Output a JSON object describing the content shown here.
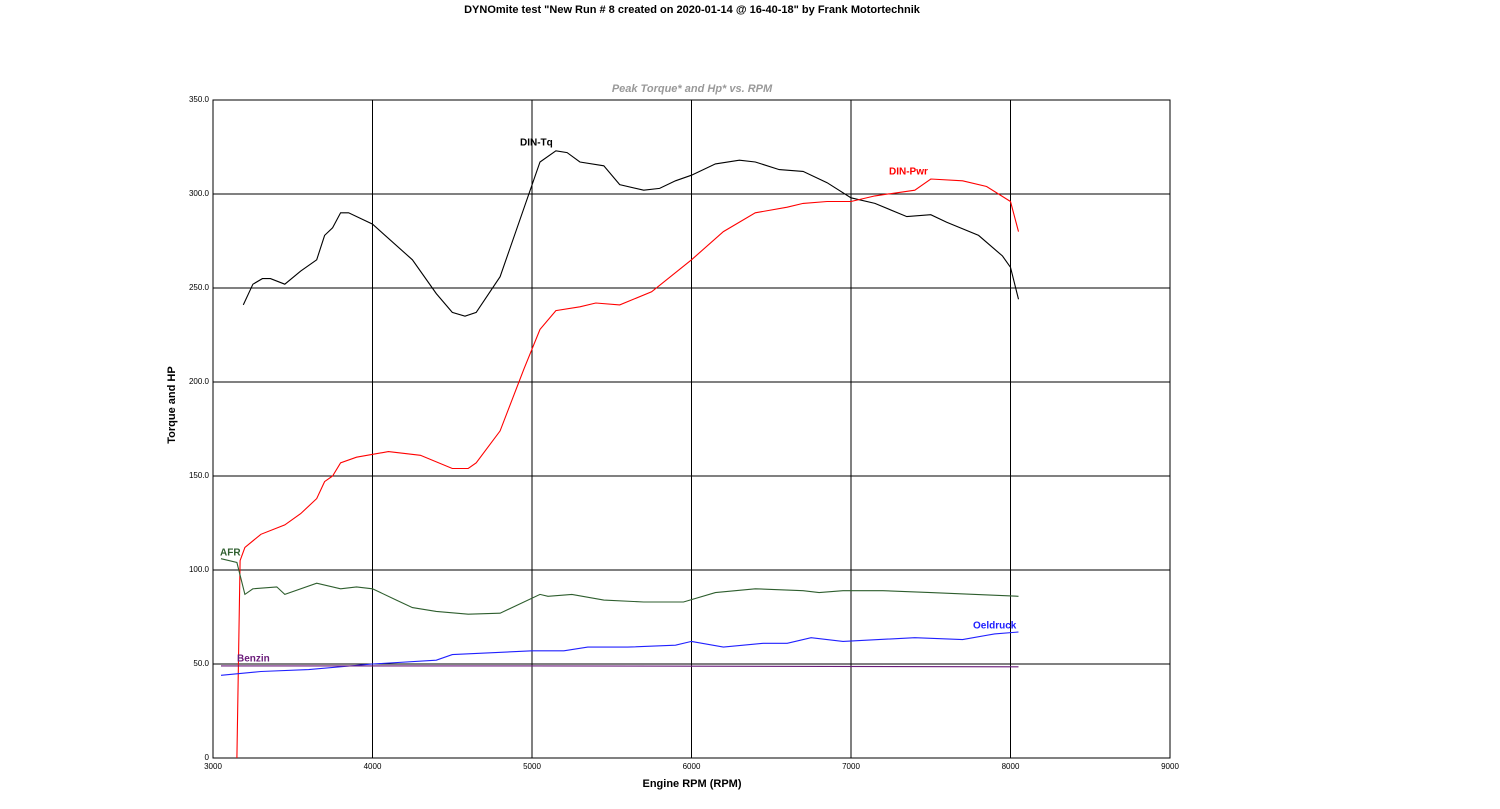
{
  "chart_data": {
    "type": "line",
    "title": "DYNOmite test \"New Run # 8 created on 2020-01-14 @ 16-40-18\" by Frank Motortechnik",
    "subtitle": "Peak Torque* and Hp* vs. RPM",
    "x_label": "Engine RPM (RPM)",
    "y_label": "Torque and HP",
    "xlim": [
      3000,
      9000
    ],
    "xticks": [
      3000,
      4000,
      5000,
      6000,
      7000,
      8000,
      9000
    ],
    "ylim": [
      0,
      350
    ],
    "yticks": [
      0,
      {
        "value": 50,
        "label": "50.0"
      },
      {
        "value": 100,
        "label": "100.0"
      },
      {
        "value": 150,
        "label": "150.0"
      },
      {
        "value": 200,
        "label": "200.0"
      },
      {
        "value": 250,
        "label": "250.0"
      },
      {
        "value": 300,
        "label": "300.0"
      },
      {
        "value": 350,
        "label": "350.0"
      }
    ],
    "grid": true,
    "series": [
      {
        "name": "DIN-Tq",
        "color": "#000000",
        "x": [
          3190,
          3250,
          3310,
          3360,
          3450,
          3550,
          3650,
          3700,
          3750,
          3800,
          3850,
          4000,
          4250,
          4400,
          4500,
          4580,
          4650,
          4800,
          5050,
          5150,
          5220,
          5300,
          5450,
          5550,
          5700,
          5800,
          5900,
          6000,
          6150,
          6300,
          6400,
          6550,
          6700,
          6850,
          7000,
          7150,
          7350,
          7500,
          7600,
          7800,
          7950,
          8000,
          8050
        ],
        "values": [
          241,
          252,
          255,
          255,
          252,
          259,
          265,
          278,
          282,
          290,
          290,
          284,
          265,
          247,
          237,
          235,
          237,
          256,
          317,
          323,
          322,
          317,
          315,
          305,
          302,
          303,
          307,
          310,
          316,
          318,
          317,
          313,
          312,
          306,
          298,
          295,
          288,
          289,
          285,
          278,
          267,
          261,
          244
        ]
      },
      {
        "name": "DIN-Pwr",
        "color": "#ff0000",
        "x": [
          3150,
          3170,
          3200,
          3300,
          3450,
          3550,
          3650,
          3700,
          3750,
          3800,
          3900,
          4100,
          4300,
          4500,
          4600,
          4650,
          4800,
          4950,
          5050,
          5150,
          5300,
          5400,
          5550,
          5750,
          6000,
          6200,
          6400,
          6600,
          6700,
          6850,
          7000,
          7150,
          7400,
          7500,
          7700,
          7850,
          8000,
          8050
        ],
        "values": [
          0,
          105,
          112,
          119,
          124,
          130,
          138,
          147,
          150,
          157,
          160,
          163,
          161,
          154,
          154,
          157,
          174,
          207,
          228,
          238,
          240,
          242,
          241,
          248,
          265,
          280,
          290,
          293,
          295,
          296,
          296,
          299,
          302,
          308,
          307,
          304,
          296,
          280
        ]
      },
      {
        "name": "AFR",
        "color": "#2e5e2e",
        "x": [
          3050,
          3150,
          3200,
          3250,
          3400,
          3450,
          3650,
          3800,
          3900,
          4000,
          4150,
          4250,
          4400,
          4600,
          4800,
          5050,
          5100,
          5250,
          5450,
          5700,
          5950,
          6150,
          6400,
          6700,
          6800,
          6950,
          7200,
          7500,
          8050
        ],
        "values": [
          106,
          104,
          87,
          90,
          91,
          87,
          93,
          90,
          91,
          90,
          84,
          80,
          78,
          76.5,
          77,
          87,
          86,
          87,
          84,
          83,
          83,
          88,
          90,
          89,
          88,
          89,
          89,
          88,
          86
        ]
      },
      {
        "name": "Oeldruck",
        "color": "#2020ff",
        "x": [
          3050,
          3300,
          3600,
          4000,
          4400,
          4500,
          5000,
          5200,
          5350,
          5600,
          5900,
          6000,
          6200,
          6450,
          6600,
          6750,
          6950,
          7400,
          7700,
          7900,
          8050
        ],
        "values": [
          44,
          46,
          47,
          50,
          52,
          55,
          57,
          57,
          59,
          59,
          60,
          62,
          59,
          61,
          61,
          64,
          62,
          64,
          63,
          66,
          67
        ]
      },
      {
        "name": "Benzin",
        "color": "#6a1b7a",
        "x": [
          3050,
          5000,
          8050
        ],
        "values": [
          49,
          49,
          48.5
        ]
      }
    ]
  }
}
